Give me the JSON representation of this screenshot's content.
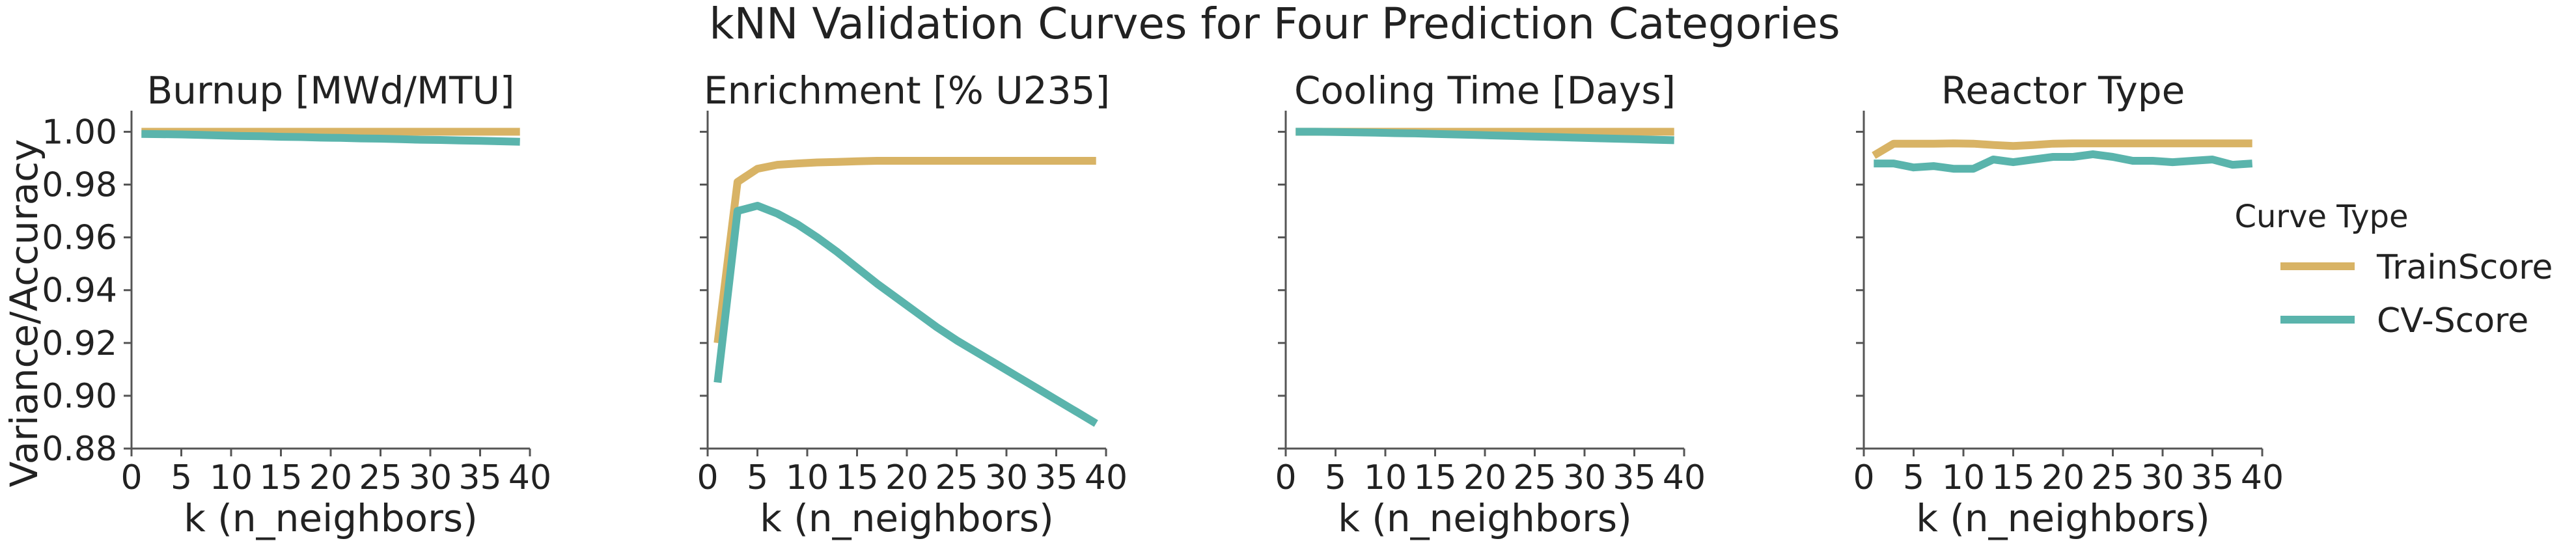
{
  "title": "kNN Validation Curves for Four Prediction Categories",
  "ylabel": "Variance/Accuracy",
  "xlabel": "k (n_neighbors)",
  "legend": {
    "title": "Curve Type",
    "placement": "right",
    "entries": [
      {
        "label": "TrainScore",
        "color": "#d8b365"
      },
      {
        "label": "CV-Score",
        "color": "#5ab4ac"
      }
    ]
  },
  "chart_data": [
    {
      "type": "line",
      "title": "Burnup [MWd/MTU]",
      "xlim": [
        0,
        40
      ],
      "ylim": [
        0.88,
        1.008
      ],
      "xticks": [
        0,
        5,
        10,
        15,
        20,
        25,
        30,
        35,
        40
      ],
      "yticks": [
        "0.88",
        "0.90",
        "0.92",
        "0.94",
        "0.96",
        "0.98",
        "1.00"
      ],
      "show_yticklabels": true,
      "grid": false,
      "series": [
        {
          "name": "TrainScore",
          "color": "#d8b365",
          "x": [
            1,
            3,
            5,
            7,
            9,
            11,
            13,
            15,
            17,
            19,
            21,
            23,
            25,
            27,
            29,
            31,
            33,
            35,
            37,
            39
          ],
          "y": [
            1.0,
            1.0,
            1.0,
            1.0,
            1.0,
            1.0,
            1.0,
            1.0,
            1.0,
            1.0,
            1.0,
            1.0,
            1.0,
            1.0,
            1.0,
            1.0,
            1.0,
            1.0,
            1.0,
            1.0
          ]
        },
        {
          "name": "CV-Score",
          "color": "#5ab4ac",
          "x": [
            1,
            3,
            5,
            7,
            9,
            11,
            13,
            15,
            17,
            19,
            21,
            23,
            25,
            27,
            29,
            31,
            33,
            35,
            37,
            39
          ],
          "y": [
            0.9992,
            0.9991,
            0.999,
            0.9988,
            0.9986,
            0.9984,
            0.9983,
            0.9981,
            0.998,
            0.9978,
            0.9977,
            0.9975,
            0.9974,
            0.9972,
            0.997,
            0.9969,
            0.9967,
            0.9966,
            0.9964,
            0.9962
          ]
        }
      ]
    },
    {
      "type": "line",
      "title": "Enrichment [% U235]",
      "xlim": [
        0,
        40
      ],
      "ylim": [
        0.88,
        1.008
      ],
      "xticks": [
        0,
        5,
        10,
        15,
        20,
        25,
        30,
        35,
        40
      ],
      "yticks": [
        "0.88",
        "0.90",
        "0.92",
        "0.94",
        "0.96",
        "0.98",
        "1.00"
      ],
      "show_yticklabels": false,
      "grid": false,
      "series": [
        {
          "name": "TrainScore",
          "color": "#d8b365",
          "x": [
            1,
            3,
            5,
            7,
            9,
            11,
            13,
            15,
            17,
            19,
            21,
            23,
            25,
            27,
            29,
            31,
            33,
            35,
            37,
            39
          ],
          "y": [
            0.92,
            0.981,
            0.986,
            0.9875,
            0.988,
            0.9884,
            0.9886,
            0.9888,
            0.989,
            0.989,
            0.989,
            0.989,
            0.989,
            0.989,
            0.989,
            0.989,
            0.989,
            0.989,
            0.989,
            0.989
          ]
        },
        {
          "name": "CV-Score",
          "color": "#5ab4ac",
          "x": [
            1,
            3,
            5,
            7,
            9,
            11,
            13,
            15,
            17,
            19,
            21,
            23,
            25,
            27,
            29,
            31,
            33,
            35,
            37,
            39
          ],
          "y": [
            0.905,
            0.97,
            0.972,
            0.969,
            0.965,
            0.96,
            0.9545,
            0.9485,
            0.9425,
            0.937,
            0.9315,
            0.926,
            0.921,
            0.9165,
            0.912,
            0.9075,
            0.903,
            0.8985,
            0.894,
            0.8895
          ]
        }
      ]
    },
    {
      "type": "line",
      "title": "Cooling Time [Days]",
      "xlim": [
        0,
        40
      ],
      "ylim": [
        0.88,
        1.008
      ],
      "xticks": [
        0,
        5,
        10,
        15,
        20,
        25,
        30,
        35,
        40
      ],
      "yticks": [
        "0.88",
        "0.90",
        "0.92",
        "0.94",
        "0.96",
        "0.98",
        "1.00"
      ],
      "show_yticklabels": false,
      "grid": false,
      "series": [
        {
          "name": "TrainScore",
          "color": "#d8b365",
          "x": [
            1,
            3,
            5,
            7,
            9,
            11,
            13,
            15,
            17,
            19,
            21,
            23,
            25,
            27,
            29,
            31,
            33,
            35,
            37,
            39
          ],
          "y": [
            1.0,
            1.0,
            1.0,
            1.0,
            1.0,
            1.0,
            1.0,
            1.0,
            1.0,
            1.0,
            1.0,
            1.0,
            1.0,
            1.0,
            1.0,
            1.0,
            1.0,
            1.0,
            1.0,
            1.0
          ]
        },
        {
          "name": "CV-Score",
          "color": "#5ab4ac",
          "x": [
            1,
            3,
            5,
            7,
            9,
            11,
            13,
            15,
            17,
            19,
            21,
            23,
            25,
            27,
            29,
            31,
            33,
            35,
            37,
            39
          ],
          "y": [
            1.0,
            1.0,
            0.9999,
            0.9998,
            0.9997,
            0.9995,
            0.9994,
            0.9992,
            0.999,
            0.9988,
            0.9986,
            0.9984,
            0.9982,
            0.998,
            0.9978,
            0.9976,
            0.9974,
            0.9972,
            0.997,
            0.9968
          ]
        }
      ]
    },
    {
      "type": "line",
      "title": "Reactor Type",
      "xlim": [
        0,
        40
      ],
      "ylim": [
        0.88,
        1.008
      ],
      "xticks": [
        0,
        5,
        10,
        15,
        20,
        25,
        30,
        35,
        40
      ],
      "yticks": [
        "0.88",
        "0.90",
        "0.92",
        "0.94",
        "0.96",
        "0.98",
        "1.00"
      ],
      "show_yticklabels": false,
      "grid": false,
      "series": [
        {
          "name": "TrainScore",
          "color": "#d8b365",
          "x": [
            1,
            3,
            5,
            7,
            9,
            11,
            13,
            15,
            17,
            19,
            21,
            23,
            25,
            27,
            29,
            31,
            33,
            35,
            37,
            39
          ],
          "y": [
            0.991,
            0.9955,
            0.9955,
            0.9955,
            0.9956,
            0.9955,
            0.995,
            0.9946,
            0.995,
            0.9955,
            0.9956,
            0.9956,
            0.9956,
            0.9956,
            0.9956,
            0.9956,
            0.9956,
            0.9956,
            0.9956,
            0.9956
          ]
        },
        {
          "name": "CV-Score",
          "color": "#5ab4ac",
          "x": [
            1,
            3,
            5,
            7,
            9,
            11,
            13,
            15,
            17,
            19,
            21,
            23,
            25,
            27,
            29,
            31,
            33,
            35,
            37,
            39
          ],
          "y": [
            0.988,
            0.988,
            0.9865,
            0.987,
            0.986,
            0.986,
            0.9895,
            0.9885,
            0.9895,
            0.9905,
            0.9905,
            0.9915,
            0.9905,
            0.989,
            0.989,
            0.9885,
            0.989,
            0.9895,
            0.9875,
            0.988
          ]
        }
      ]
    }
  ]
}
